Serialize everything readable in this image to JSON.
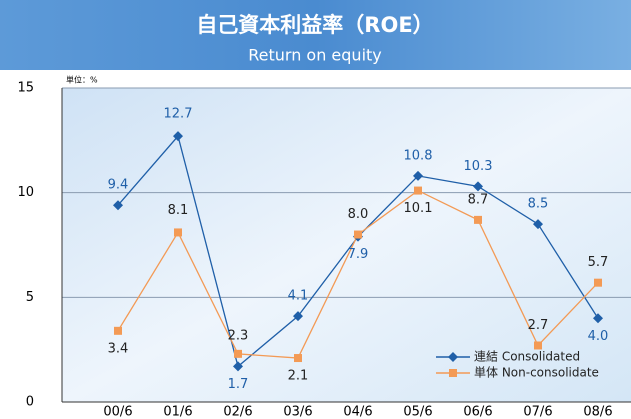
{
  "chart_data": {
    "type": "line",
    "title": "自己資本利益率（ROE）",
    "subtitle": "Return on equity",
    "unit_label": "単位：%",
    "categories": [
      "00/6",
      "01/6",
      "02/6",
      "03/6",
      "04/6",
      "05/6",
      "06/6",
      "07/6",
      "08/6"
    ],
    "series": [
      {
        "name": "連結 Consolidated",
        "color": "#1f5fa8",
        "marker": "diamond",
        "values": [
          9.4,
          12.7,
          1.7,
          4.1,
          7.9,
          10.8,
          10.3,
          8.5,
          4.0
        ],
        "value_labels": [
          "9.4",
          "12.7",
          "1.7",
          "4.1",
          "7.9",
          "10.8",
          "10.3",
          "8.5",
          "4.0"
        ]
      },
      {
        "name": "単体 Non-consolidate",
        "color": "#f39a55",
        "marker": "square",
        "values": [
          3.4,
          8.1,
          2.3,
          2.1,
          8.0,
          10.1,
          8.7,
          2.7,
          5.7
        ],
        "value_labels": [
          "3.4",
          "8.1",
          "2.3",
          "2.1",
          "8.0",
          "10.1",
          "8.7",
          "2.7",
          "5.7"
        ]
      }
    ],
    "ylim": [
      0,
      15
    ],
    "yticks": [
      0,
      5,
      10,
      15
    ],
    "grid": true
  }
}
